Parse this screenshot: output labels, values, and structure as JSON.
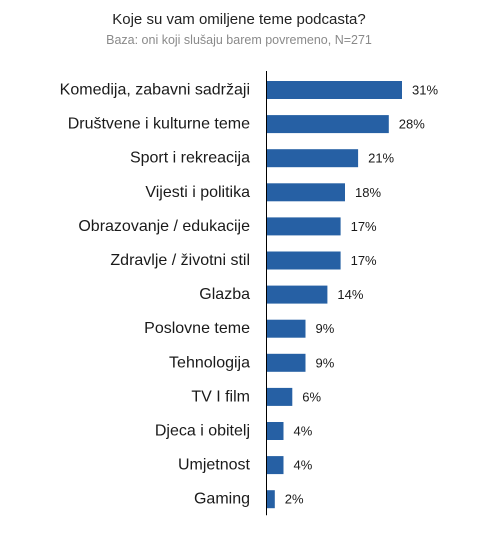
{
  "chart_data": {
    "type": "bar",
    "orientation": "horizontal",
    "title": "Koje su vam omiljene teme podcasta?",
    "subtitle": "Baza: oni koji slušaju barem povremeno, N=271",
    "categories": [
      "Komedija, zabavni sadržaji",
      "Društvene i kulturne teme",
      "Sport i rekreacija",
      "Vijesti i politika",
      "Obrazovanje / edukacije",
      "Zdravlje / životni stil",
      "Glazba",
      "Poslovne teme",
      "Tehnologija",
      "TV I film",
      "Djeca i obitelj",
      "Umjetnost",
      "Gaming"
    ],
    "values": [
      31,
      28,
      21,
      18,
      17,
      17,
      14,
      9,
      9,
      6,
      4,
      4,
      2
    ],
    "value_labels": [
      "31%",
      "28%",
      "21%",
      "18%",
      "17%",
      "17%",
      "14%",
      "9%",
      "9%",
      "6%",
      "4%",
      "4%",
      "2%"
    ],
    "unit": "%",
    "xlim": [
      0,
      31
    ],
    "grid": false,
    "legend": "none",
    "bar_color": "#2660a4"
  }
}
